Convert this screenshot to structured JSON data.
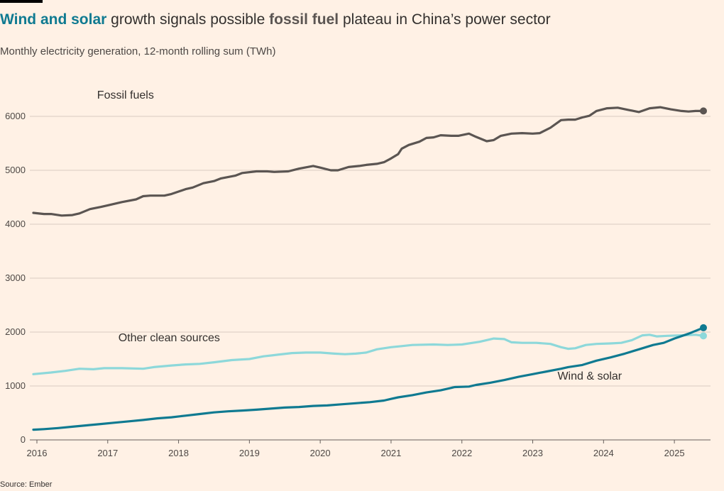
{
  "header": {
    "title_parts": {
      "wind_solar": "Wind and solar",
      "text1": " growth signals possible ",
      "fossil": "fossil fuel",
      "text2": " plateau in China’s power sector"
    },
    "subtitle": "Monthly electricity generation, 12-month rolling sum (TWh)"
  },
  "footer": {
    "source": "Source: Ember"
  },
  "chart_data": {
    "type": "line",
    "title": "Wind and solar growth signals possible fossil fuel plateau in China’s power sector",
    "subtitle": "Monthly electricity generation, 12-month rolling sum (TWh)",
    "ylim": [
      0,
      6000
    ],
    "yticks": [
      0,
      1000,
      2000,
      3000,
      4000,
      5000,
      6000
    ],
    "xlim": [
      2015.95,
      2025.45
    ],
    "xticks": [
      2016,
      2017,
      2018,
      2019,
      2020,
      2021,
      2022,
      2023,
      2024,
      2025
    ],
    "xtick_labels": [
      "2016",
      "2017",
      "2018",
      "2019",
      "2020",
      "2021",
      "2022",
      "2023",
      "2024",
      "2025"
    ],
    "grid": "horizontal",
    "legend": "direct labels",
    "colors": {
      "fossil": "#5B5552",
      "other": "#8DD8DA",
      "ws": "#0F7A91"
    },
    "series": [
      {
        "name": "Fossil fuels",
        "key": "fossil",
        "label_x": 2016.85,
        "label_y": 6330,
        "points": [
          [
            2015.95,
            4210
          ],
          [
            2016.1,
            4190
          ],
          [
            2016.2,
            4190
          ],
          [
            2016.35,
            4160
          ],
          [
            2016.5,
            4170
          ],
          [
            2016.6,
            4200
          ],
          [
            2016.75,
            4280
          ],
          [
            2016.9,
            4320
          ],
          [
            2017.0,
            4350
          ],
          [
            2017.2,
            4410
          ],
          [
            2017.4,
            4460
          ],
          [
            2017.5,
            4520
          ],
          [
            2017.6,
            4530
          ],
          [
            2017.8,
            4530
          ],
          [
            2017.9,
            4560
          ],
          [
            2018.1,
            4650
          ],
          [
            2018.2,
            4680
          ],
          [
            2018.35,
            4760
          ],
          [
            2018.5,
            4800
          ],
          [
            2018.6,
            4850
          ],
          [
            2018.8,
            4900
          ],
          [
            2018.9,
            4950
          ],
          [
            2019.1,
            4980
          ],
          [
            2019.25,
            4980
          ],
          [
            2019.35,
            4970
          ],
          [
            2019.55,
            4980
          ],
          [
            2019.7,
            5030
          ],
          [
            2019.9,
            5080
          ],
          [
            2020.0,
            5050
          ],
          [
            2020.15,
            5000
          ],
          [
            2020.25,
            5000
          ],
          [
            2020.4,
            5060
          ],
          [
            2020.55,
            5080
          ],
          [
            2020.65,
            5100
          ],
          [
            2020.8,
            5120
          ],
          [
            2020.9,
            5150
          ],
          [
            2021.0,
            5220
          ],
          [
            2021.1,
            5300
          ],
          [
            2021.15,
            5400
          ],
          [
            2021.25,
            5470
          ],
          [
            2021.4,
            5530
          ],
          [
            2021.5,
            5600
          ],
          [
            2021.6,
            5610
          ],
          [
            2021.7,
            5650
          ],
          [
            2021.85,
            5640
          ],
          [
            2021.95,
            5640
          ],
          [
            2022.1,
            5680
          ],
          [
            2022.2,
            5620
          ],
          [
            2022.35,
            5540
          ],
          [
            2022.45,
            5560
          ],
          [
            2022.55,
            5640
          ],
          [
            2022.7,
            5680
          ],
          [
            2022.85,
            5690
          ],
          [
            2023.0,
            5680
          ],
          [
            2023.1,
            5690
          ],
          [
            2023.25,
            5790
          ],
          [
            2023.4,
            5930
          ],
          [
            2023.5,
            5940
          ],
          [
            2023.6,
            5940
          ],
          [
            2023.7,
            5980
          ],
          [
            2023.8,
            6010
          ],
          [
            2023.9,
            6100
          ],
          [
            2024.05,
            6150
          ],
          [
            2024.2,
            6160
          ],
          [
            2024.35,
            6120
          ],
          [
            2024.5,
            6080
          ],
          [
            2024.65,
            6150
          ],
          [
            2024.8,
            6170
          ],
          [
            2024.95,
            6130
          ],
          [
            2025.1,
            6100
          ],
          [
            2025.2,
            6090
          ],
          [
            2025.3,
            6100
          ],
          [
            2025.41,
            6100
          ]
        ]
      },
      {
        "name": "Other clean sources",
        "key": "other",
        "label_x": 2017.15,
        "label_y": 1830,
        "points": [
          [
            2015.95,
            1220
          ],
          [
            2016.2,
            1250
          ],
          [
            2016.4,
            1280
          ],
          [
            2016.6,
            1320
          ],
          [
            2016.8,
            1310
          ],
          [
            2016.95,
            1330
          ],
          [
            2017.2,
            1330
          ],
          [
            2017.5,
            1320
          ],
          [
            2017.65,
            1350
          ],
          [
            2017.9,
            1380
          ],
          [
            2018.1,
            1400
          ],
          [
            2018.3,
            1410
          ],
          [
            2018.5,
            1440
          ],
          [
            2018.75,
            1480
          ],
          [
            2019.0,
            1500
          ],
          [
            2019.2,
            1550
          ],
          [
            2019.4,
            1580
          ],
          [
            2019.6,
            1610
          ],
          [
            2019.8,
            1620
          ],
          [
            2020.0,
            1620
          ],
          [
            2020.2,
            1600
          ],
          [
            2020.35,
            1590
          ],
          [
            2020.5,
            1600
          ],
          [
            2020.65,
            1620
          ],
          [
            2020.8,
            1680
          ],
          [
            2021.0,
            1720
          ],
          [
            2021.15,
            1740
          ],
          [
            2021.3,
            1760
          ],
          [
            2021.6,
            1770
          ],
          [
            2021.8,
            1760
          ],
          [
            2022.0,
            1770
          ],
          [
            2022.25,
            1820
          ],
          [
            2022.45,
            1880
          ],
          [
            2022.6,
            1870
          ],
          [
            2022.7,
            1810
          ],
          [
            2022.85,
            1800
          ],
          [
            2023.05,
            1800
          ],
          [
            2023.25,
            1780
          ],
          [
            2023.4,
            1720
          ],
          [
            2023.5,
            1690
          ],
          [
            2023.6,
            1700
          ],
          [
            2023.75,
            1760
          ],
          [
            2023.9,
            1780
          ],
          [
            2024.1,
            1790
          ],
          [
            2024.25,
            1800
          ],
          [
            2024.4,
            1850
          ],
          [
            2024.55,
            1940
          ],
          [
            2024.65,
            1950
          ],
          [
            2024.75,
            1920
          ],
          [
            2024.9,
            1930
          ],
          [
            2025.1,
            1940
          ],
          [
            2025.3,
            1950
          ],
          [
            2025.41,
            1930
          ]
        ]
      },
      {
        "name": "Wind & solar",
        "key": "ws",
        "label_x": 2023.35,
        "label_y": 1120,
        "points": [
          [
            2015.95,
            190
          ],
          [
            2016.1,
            200
          ],
          [
            2016.3,
            220
          ],
          [
            2016.5,
            245
          ],
          [
            2016.7,
            270
          ],
          [
            2016.9,
            295
          ],
          [
            2017.1,
            320
          ],
          [
            2017.3,
            345
          ],
          [
            2017.5,
            370
          ],
          [
            2017.7,
            400
          ],
          [
            2017.9,
            420
          ],
          [
            2018.1,
            450
          ],
          [
            2018.3,
            480
          ],
          [
            2018.5,
            510
          ],
          [
            2018.7,
            530
          ],
          [
            2018.9,
            545
          ],
          [
            2019.1,
            560
          ],
          [
            2019.3,
            580
          ],
          [
            2019.5,
            600
          ],
          [
            2019.7,
            610
          ],
          [
            2019.9,
            630
          ],
          [
            2020.1,
            640
          ],
          [
            2020.3,
            660
          ],
          [
            2020.5,
            680
          ],
          [
            2020.7,
            700
          ],
          [
            2020.9,
            730
          ],
          [
            2021.0,
            760
          ],
          [
            2021.1,
            790
          ],
          [
            2021.3,
            830
          ],
          [
            2021.5,
            880
          ],
          [
            2021.7,
            920
          ],
          [
            2021.9,
            980
          ],
          [
            2022.1,
            990
          ],
          [
            2022.2,
            1020
          ],
          [
            2022.4,
            1060
          ],
          [
            2022.6,
            1110
          ],
          [
            2022.8,
            1170
          ],
          [
            2023.0,
            1220
          ],
          [
            2023.2,
            1270
          ],
          [
            2023.4,
            1320
          ],
          [
            2023.5,
            1350
          ],
          [
            2023.7,
            1390
          ],
          [
            2023.9,
            1470
          ],
          [
            2024.1,
            1530
          ],
          [
            2024.3,
            1600
          ],
          [
            2024.5,
            1680
          ],
          [
            2024.7,
            1760
          ],
          [
            2024.85,
            1800
          ],
          [
            2025.0,
            1880
          ],
          [
            2025.2,
            1970
          ],
          [
            2025.41,
            2080
          ]
        ]
      }
    ]
  }
}
